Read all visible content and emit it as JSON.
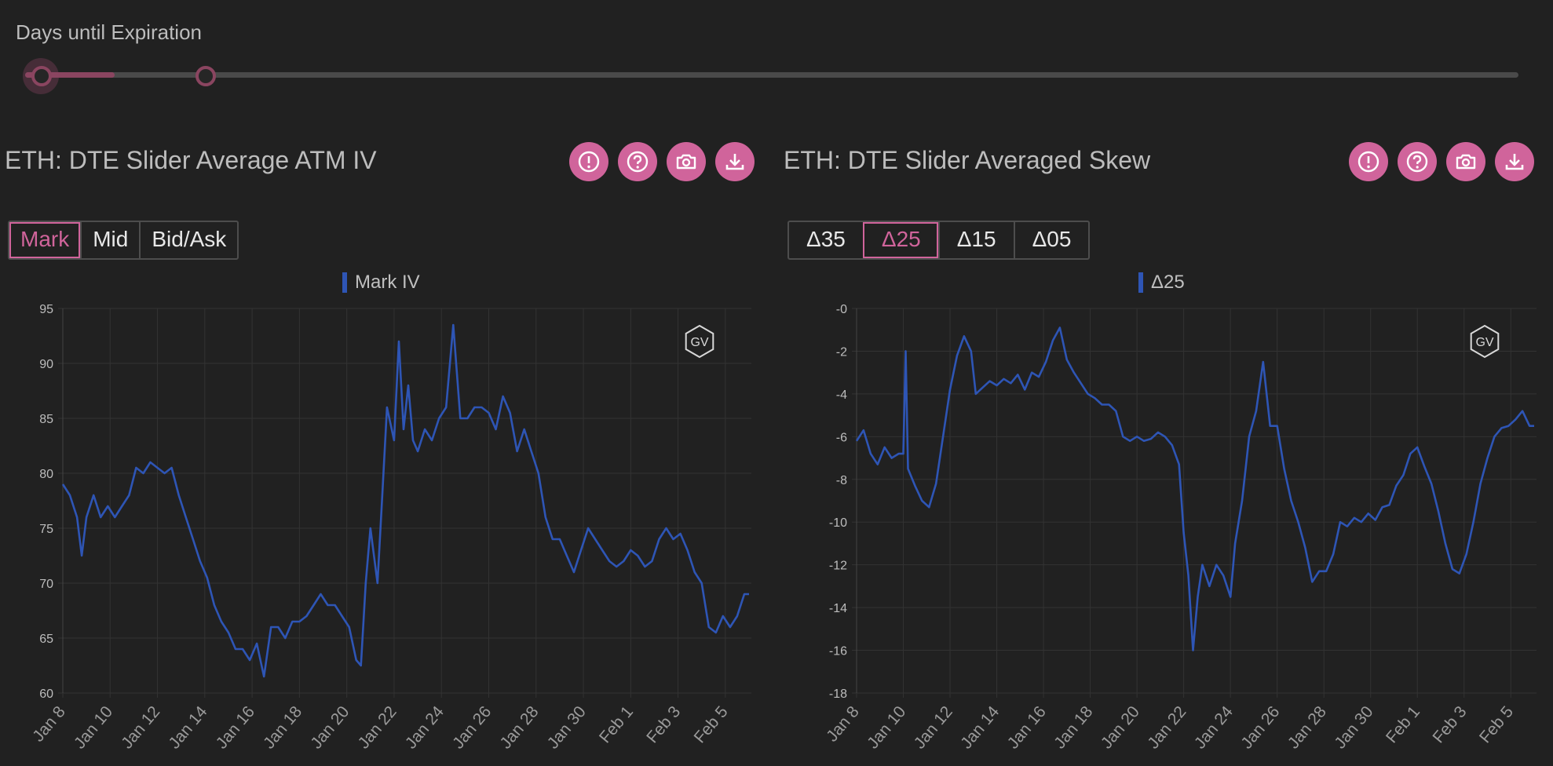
{
  "slider": {
    "label": "Days until Expiration",
    "range_low": 0,
    "range_high": 0.06,
    "fill_color": "#8a4560"
  },
  "panels": [
    {
      "title": "ETH: DTE Slider Average ATM IV",
      "icons": [
        "alert-icon",
        "help-icon",
        "camera-icon",
        "download-icon"
      ],
      "tabs": [
        "Mark",
        "Mid",
        "Bid/Ask"
      ],
      "active_tab": "Mark",
      "legend": "Mark IV",
      "watermark": "GV"
    },
    {
      "title": "ETH: DTE Slider Averaged Skew",
      "icons": [
        "alert-icon",
        "help-icon",
        "camera-icon",
        "download-icon"
      ],
      "tabs": [
        "Δ35",
        "Δ25",
        "Δ15",
        "Δ05"
      ],
      "active_tab": "Δ25",
      "legend": "Δ25",
      "watermark": "GV"
    }
  ],
  "chart_data": [
    {
      "type": "line",
      "series": [
        {
          "name": "Mark IV",
          "color": "#2e55b5",
          "points": [
            [
              8.0,
              79
            ],
            [
              8.3,
              78
            ],
            [
              8.6,
              76
            ],
            [
              8.8,
              72.5
            ],
            [
              9.0,
              76
            ],
            [
              9.3,
              78
            ],
            [
              9.6,
              76
            ],
            [
              9.9,
              77
            ],
            [
              10.2,
              76
            ],
            [
              10.5,
              77
            ],
            [
              10.8,
              78
            ],
            [
              11.1,
              80.5
            ],
            [
              11.4,
              80
            ],
            [
              11.7,
              81
            ],
            [
              12.0,
              80.5
            ],
            [
              12.3,
              80
            ],
            [
              12.6,
              80.5
            ],
            [
              12.9,
              78
            ],
            [
              13.2,
              76
            ],
            [
              13.5,
              74
            ],
            [
              13.8,
              72
            ],
            [
              14.1,
              70.5
            ],
            [
              14.4,
              68
            ],
            [
              14.7,
              66.5
            ],
            [
              15.0,
              65.5
            ],
            [
              15.3,
              64
            ],
            [
              15.6,
              64
            ],
            [
              15.9,
              63
            ],
            [
              16.2,
              64.5
            ],
            [
              16.5,
              61.5
            ],
            [
              16.8,
              66
            ],
            [
              17.1,
              66
            ],
            [
              17.4,
              65
            ],
            [
              17.7,
              66.5
            ],
            [
              18.0,
              66.5
            ],
            [
              18.3,
              67
            ],
            [
              18.6,
              68
            ],
            [
              18.9,
              69
            ],
            [
              19.2,
              68
            ],
            [
              19.5,
              68
            ],
            [
              19.8,
              67
            ],
            [
              20.1,
              66
            ],
            [
              20.4,
              63
            ],
            [
              20.6,
              62.5
            ],
            [
              20.8,
              70
            ],
            [
              21.0,
              75
            ],
            [
              21.3,
              70
            ],
            [
              21.5,
              78
            ],
            [
              21.7,
              86
            ],
            [
              22.0,
              83
            ],
            [
              22.2,
              92
            ],
            [
              22.4,
              84
            ],
            [
              22.6,
              88
            ],
            [
              22.8,
              83
            ],
            [
              23.0,
              82
            ],
            [
              23.3,
              84
            ],
            [
              23.6,
              83
            ],
            [
              23.9,
              85
            ],
            [
              24.2,
              86
            ],
            [
              24.5,
              93.5
            ],
            [
              24.8,
              85
            ],
            [
              25.1,
              85
            ],
            [
              25.4,
              86
            ],
            [
              25.7,
              86
            ],
            [
              26.0,
              85.5
            ],
            [
              26.3,
              84
            ],
            [
              26.6,
              87
            ],
            [
              26.9,
              85.5
            ],
            [
              27.2,
              82
            ],
            [
              27.5,
              84
            ],
            [
              27.8,
              82
            ],
            [
              28.1,
              80
            ],
            [
              28.4,
              76
            ],
            [
              28.7,
              74
            ],
            [
              29.0,
              74
            ],
            [
              29.3,
              72.5
            ],
            [
              29.6,
              71
            ],
            [
              29.9,
              73
            ],
            [
              30.2,
              75
            ],
            [
              30.5,
              74
            ],
            [
              30.8,
              73
            ],
            [
              31.1,
              72
            ],
            [
              31.4,
              71.5
            ],
            [
              31.7,
              72
            ],
            [
              32.0,
              73
            ],
            [
              32.3,
              72.5
            ],
            [
              32.6,
              71.5
            ],
            [
              32.9,
              72
            ],
            [
              33.2,
              74
            ],
            [
              33.5,
              75
            ],
            [
              33.8,
              74
            ],
            [
              34.1,
              74.5
            ],
            [
              34.4,
              73
            ],
            [
              34.7,
              71
            ],
            [
              35.0,
              70
            ],
            [
              35.3,
              66
            ],
            [
              35.6,
              65.5
            ],
            [
              35.9,
              67
            ],
            [
              36.2,
              66
            ],
            [
              36.5,
              67
            ],
            [
              36.8,
              69
            ],
            [
              37.0,
              69
            ]
          ]
        }
      ],
      "x_ticks": [
        {
          "x": 8,
          "label": "Jan 8"
        },
        {
          "x": 10,
          "label": "Jan 10"
        },
        {
          "x": 12,
          "label": "Jan 12"
        },
        {
          "x": 14,
          "label": "Jan 14"
        },
        {
          "x": 16,
          "label": "Jan 16"
        },
        {
          "x": 18,
          "label": "Jan 18"
        },
        {
          "x": 20,
          "label": "Jan 20"
        },
        {
          "x": 22,
          "label": "Jan 22"
        },
        {
          "x": 24,
          "label": "Jan 24"
        },
        {
          "x": 26,
          "label": "Jan 26"
        },
        {
          "x": 28,
          "label": "Jan 28"
        },
        {
          "x": 30,
          "label": "Jan 30"
        },
        {
          "x": 32,
          "label": "Feb 1"
        },
        {
          "x": 34,
          "label": "Feb 3"
        },
        {
          "x": 36,
          "label": "Feb 5"
        }
      ],
      "xlim": [
        8,
        37.1
      ],
      "y_ticks": [
        95,
        90,
        85,
        80,
        75,
        70,
        65,
        60
      ],
      "ylim": [
        60,
        95
      ],
      "grid": true
    },
    {
      "type": "line",
      "series": [
        {
          "name": "Δ25",
          "color": "#2e55b5",
          "points": [
            [
              8.0,
              -6.2
            ],
            [
              8.3,
              -5.7
            ],
            [
              8.6,
              -6.8
            ],
            [
              8.9,
              -7.3
            ],
            [
              9.2,
              -6.5
            ],
            [
              9.5,
              -7
            ],
            [
              9.8,
              -6.8
            ],
            [
              10.0,
              -6.8
            ],
            [
              10.1,
              -2
            ],
            [
              10.2,
              -7.5
            ],
            [
              10.5,
              -8.3
            ],
            [
              10.8,
              -9
            ],
            [
              11.1,
              -9.3
            ],
            [
              11.4,
              -8.2
            ],
            [
              11.7,
              -6
            ],
            [
              12.0,
              -3.8
            ],
            [
              12.3,
              -2.2
            ],
            [
              12.6,
              -1.3
            ],
            [
              12.9,
              -2
            ],
            [
              13.1,
              -4
            ],
            [
              13.4,
              -3.7
            ],
            [
              13.7,
              -3.4
            ],
            [
              14.0,
              -3.6
            ],
            [
              14.3,
              -3.3
            ],
            [
              14.6,
              -3.5
            ],
            [
              14.9,
              -3.1
            ],
            [
              15.2,
              -3.8
            ],
            [
              15.5,
              -3
            ],
            [
              15.8,
              -3.2
            ],
            [
              16.1,
              -2.5
            ],
            [
              16.4,
              -1.5
            ],
            [
              16.7,
              -0.9
            ],
            [
              17.0,
              -2.4
            ],
            [
              17.3,
              -3
            ],
            [
              17.6,
              -3.5
            ],
            [
              17.9,
              -4
            ],
            [
              18.2,
              -4.2
            ],
            [
              18.5,
              -4.5
            ],
            [
              18.8,
              -4.5
            ],
            [
              19.1,
              -4.8
            ],
            [
              19.4,
              -6
            ],
            [
              19.7,
              -6.2
            ],
            [
              20.0,
              -6
            ],
            [
              20.3,
              -6.2
            ],
            [
              20.6,
              -6.1
            ],
            [
              20.9,
              -5.8
            ],
            [
              21.2,
              -6
            ],
            [
              21.5,
              -6.4
            ],
            [
              21.8,
              -7.3
            ],
            [
              22.0,
              -10.5
            ],
            [
              22.2,
              -12.5
            ],
            [
              22.4,
              -16
            ],
            [
              22.6,
              -13.5
            ],
            [
              22.8,
              -12
            ],
            [
              23.1,
              -13
            ],
            [
              23.4,
              -12
            ],
            [
              23.7,
              -12.5
            ],
            [
              24.0,
              -13.5
            ],
            [
              24.2,
              -11
            ],
            [
              24.5,
              -9
            ],
            [
              24.8,
              -6
            ],
            [
              25.1,
              -4.8
            ],
            [
              25.4,
              -2.5
            ],
            [
              25.7,
              -5.5
            ],
            [
              26.0,
              -5.5
            ],
            [
              26.3,
              -7.5
            ],
            [
              26.6,
              -9
            ],
            [
              26.9,
              -10
            ],
            [
              27.2,
              -11.2
            ],
            [
              27.5,
              -12.8
            ],
            [
              27.8,
              -12.3
            ],
            [
              28.1,
              -12.3
            ],
            [
              28.4,
              -11.5
            ],
            [
              28.7,
              -10
            ],
            [
              29.0,
              -10.2
            ],
            [
              29.3,
              -9.8
            ],
            [
              29.6,
              -10
            ],
            [
              29.9,
              -9.6
            ],
            [
              30.2,
              -9.9
            ],
            [
              30.5,
              -9.3
            ],
            [
              30.8,
              -9.2
            ],
            [
              31.1,
              -8.3
            ],
            [
              31.4,
              -7.8
            ],
            [
              31.7,
              -6.8
            ],
            [
              32.0,
              -6.5
            ],
            [
              32.3,
              -7.4
            ],
            [
              32.6,
              -8.2
            ],
            [
              32.9,
              -9.5
            ],
            [
              33.2,
              -11
            ],
            [
              33.5,
              -12.2
            ],
            [
              33.8,
              -12.4
            ],
            [
              34.1,
              -11.5
            ],
            [
              34.4,
              -10
            ],
            [
              34.7,
              -8.2
            ],
            [
              35.0,
              -7
            ],
            [
              35.3,
              -6
            ],
            [
              35.6,
              -5.6
            ],
            [
              35.9,
              -5.5
            ],
            [
              36.2,
              -5.2
            ],
            [
              36.5,
              -4.8
            ],
            [
              36.8,
              -5.5
            ],
            [
              37.0,
              -5.5
            ]
          ]
        }
      ],
      "x_ticks": [
        {
          "x": 8,
          "label": "Jan 8"
        },
        {
          "x": 10,
          "label": "Jan 10"
        },
        {
          "x": 12,
          "label": "Jan 12"
        },
        {
          "x": 14,
          "label": "Jan 14"
        },
        {
          "x": 16,
          "label": "Jan 16"
        },
        {
          "x": 18,
          "label": "Jan 18"
        },
        {
          "x": 20,
          "label": "Jan 20"
        },
        {
          "x": 22,
          "label": "Jan 22"
        },
        {
          "x": 24,
          "label": "Jan 24"
        },
        {
          "x": 26,
          "label": "Jan 26"
        },
        {
          "x": 28,
          "label": "Jan 28"
        },
        {
          "x": 30,
          "label": "Jan 30"
        },
        {
          "x": 32,
          "label": "Feb 1"
        },
        {
          "x": 34,
          "label": "Feb 3"
        },
        {
          "x": 36,
          "label": "Feb 5"
        }
      ],
      "xlim": [
        8,
        37.1
      ],
      "y_ticks": [
        0,
        -2,
        -4,
        -6,
        -8,
        -10,
        -12,
        -14,
        -16,
        -18
      ],
      "y_tick_labels": [
        "-0",
        "-2",
        "-4",
        "-6",
        "-8",
        "-10",
        "-12",
        "-14",
        "-16",
        "-18"
      ],
      "ylim": [
        -18,
        0
      ],
      "grid": true
    }
  ]
}
